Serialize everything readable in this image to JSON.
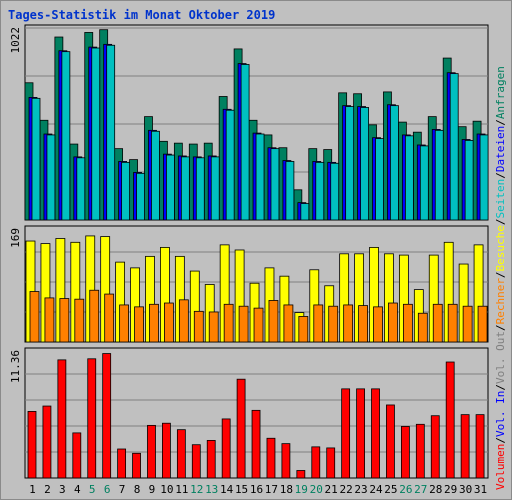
{
  "title": "Tages-Statistik im Monat Oktober 2019",
  "colors": {
    "panel_bg": "#c0c0c0",
    "grid": "#808080",
    "anfragen": "#008060",
    "dateien": "#0000ff",
    "seiten": "#00c0c0",
    "besuche": "#ffff00",
    "rechner": "#ff8000",
    "vol_out": "#808080",
    "vol_in": "#0000ff",
    "volumen": "#ff0000",
    "weekend_label": "#008060",
    "separator": "#000000"
  },
  "right_labels": {
    "top": [
      {
        "text": "Anfragen",
        "color": "#008060"
      },
      {
        "text": "/",
        "color": "#000000"
      },
      {
        "text": "Dateien",
        "color": "#0000ff"
      },
      {
        "text": "/",
        "color": "#000000"
      },
      {
        "text": "Seiten",
        "color": "#00c0c0"
      },
      {
        "text": "/",
        "color": "#000000"
      },
      {
        "text": "Besuche",
        "color": "#ffff00"
      },
      {
        "text": "/",
        "color": "#000000"
      },
      {
        "text": "Rechner",
        "color": "#ff8000"
      },
      {
        "text": "/",
        "color": "#000000"
      },
      {
        "text": "Vol. Out",
        "color": "#808080"
      },
      {
        "text": "/",
        "color": "#000000"
      },
      {
        "text": "Vol. In",
        "color": "#0000ff"
      },
      {
        "text": "/",
        "color": "#000000"
      },
      {
        "text": "Volumen",
        "color": "#ff0000"
      }
    ]
  },
  "chart_data": [
    {
      "type": "bar",
      "panel": "top",
      "ymax_label": "1022",
      "ylim": [
        0,
        1022
      ],
      "categories": [
        "1",
        "2",
        "3",
        "4",
        "5",
        "6",
        "7",
        "8",
        "9",
        "10",
        "11",
        "12",
        "13",
        "14",
        "15",
        "16",
        "17",
        "18",
        "19",
        "20",
        "21",
        "22",
        "23",
        "24",
        "25",
        "26",
        "27",
        "28",
        "29",
        "30",
        "31"
      ],
      "weekend_days": [
        "5",
        "6",
        "12",
        "13",
        "19",
        "20",
        "26",
        "27"
      ],
      "series": [
        {
          "name": "Anfragen",
          "values": [
            750,
            545,
            1000,
            415,
            1025,
            1040,
            390,
            330,
            565,
            430,
            420,
            415,
            420,
            675,
            935,
            545,
            465,
            395,
            165,
            390,
            385,
            695,
            690,
            520,
            700,
            535,
            480,
            565,
            885,
            510,
            540
          ]
        },
        {
          "name": "Dateien",
          "values": [
            670,
            470,
            925,
            345,
            945,
            960,
            320,
            260,
            490,
            360,
            350,
            345,
            350,
            605,
            855,
            475,
            395,
            325,
            95,
            320,
            315,
            625,
            620,
            450,
            630,
            465,
            410,
            495,
            805,
            440,
            470
          ]
        },
        {
          "name": "Seiten",
          "values": [
            665,
            465,
            920,
            340,
            940,
            955,
            315,
            255,
            485,
            355,
            345,
            340,
            345,
            600,
            850,
            470,
            390,
            320,
            90,
            315,
            310,
            620,
            615,
            445,
            625,
            460,
            405,
            490,
            800,
            435,
            465
          ]
        }
      ]
    },
    {
      "type": "bar",
      "panel": "middle",
      "ymax_label": "169",
      "ylim": [
        0,
        169
      ],
      "categories": [
        "1",
        "2",
        "3",
        "4",
        "5",
        "6",
        "7",
        "8",
        "9",
        "10",
        "11",
        "12",
        "13",
        "14",
        "15",
        "16",
        "17",
        "18",
        "19",
        "20",
        "21",
        "22",
        "23",
        "24",
        "25",
        "26",
        "27",
        "28",
        "29",
        "30",
        "31"
      ],
      "series": [
        {
          "name": "Besuche",
          "values": [
            158,
            154,
            162,
            156,
            166,
            165,
            125,
            116,
            134,
            148,
            134,
            111,
            90,
            152,
            144,
            92,
            116,
            103,
            46,
            113,
            88,
            138,
            138,
            148,
            138,
            136,
            82,
            136,
            156,
            122,
            152
          ]
        },
        {
          "name": "Rechner",
          "values": [
            79,
            69,
            68,
            67,
            81,
            75,
            58,
            55,
            59,
            61,
            66,
            48,
            47,
            59,
            56,
            53,
            65,
            58,
            40,
            58,
            56,
            58,
            57,
            55,
            61,
            59,
            45,
            59,
            59,
            56,
            56
          ]
        }
      ]
    },
    {
      "type": "bar",
      "panel": "bottom",
      "ymax_label": "11.36",
      "ylim": [
        0,
        11.36
      ],
      "categories": [
        "1",
        "2",
        "3",
        "4",
        "5",
        "6",
        "7",
        "8",
        "9",
        "10",
        "11",
        "12",
        "13",
        "14",
        "15",
        "16",
        "17",
        "18",
        "19",
        "20",
        "21",
        "22",
        "23",
        "24",
        "25",
        "26",
        "27",
        "28",
        "29",
        "30",
        "31"
      ],
      "series": [
        {
          "name": "Volumen",
          "values": [
            6.2,
            6.7,
            11.0,
            4.2,
            11.1,
            11.9,
            2.7,
            2.3,
            4.9,
            5.1,
            4.5,
            3.1,
            3.5,
            5.5,
            9.2,
            6.3,
            3.7,
            3.2,
            0.7,
            2.9,
            2.8,
            8.3,
            8.3,
            8.3,
            6.8,
            4.8,
            5.0,
            5.8,
            10.8,
            5.9,
            5.9
          ]
        }
      ]
    }
  ]
}
